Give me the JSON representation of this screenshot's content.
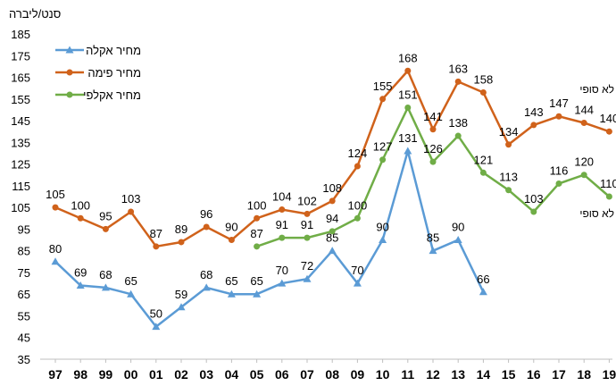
{
  "chart_data": {
    "type": "line",
    "ylabel": "סנט/ליברה",
    "ylim": [
      35,
      185
    ],
    "yticks": [
      35,
      45,
      55,
      65,
      75,
      85,
      95,
      105,
      115,
      125,
      135,
      145,
      155,
      165,
      175,
      185
    ],
    "categories": [
      "97",
      "98",
      "99",
      "00",
      "01",
      "02",
      "03",
      "04",
      "05",
      "06",
      "07",
      "08",
      "09",
      "10",
      "11",
      "12",
      "13",
      "14",
      "15",
      "16",
      "17",
      "18",
      "19"
    ],
    "legend_position": "top-left",
    "grid": false,
    "series": [
      {
        "name": "מחיר אקלה",
        "color": "#5b9bd5",
        "marker": "triangle",
        "values": [
          80,
          69,
          68,
          65,
          50,
          59,
          68,
          65,
          65,
          70,
          72,
          85,
          70,
          90,
          131,
          85,
          90,
          66,
          null,
          null,
          null,
          null,
          null
        ]
      },
      {
        "name": "מחיר פימה",
        "color": "#d0621b",
        "marker": "circle",
        "values": [
          105,
          100,
          95,
          103,
          87,
          89,
          96,
          90,
          100,
          104,
          102,
          108,
          124,
          155,
          168,
          141,
          163,
          158,
          134,
          143,
          147,
          144,
          140
        ]
      },
      {
        "name": "מחיר אקלפי",
        "color": "#70ad47",
        "marker": "circle",
        "values": [
          null,
          null,
          null,
          null,
          null,
          null,
          null,
          null,
          87,
          91,
          91,
          94,
          100,
          127,
          151,
          126,
          138,
          121,
          113,
          103,
          116,
          120,
          110
        ]
      }
    ],
    "annotations": [
      "לא סופי",
      "לא סופי"
    ]
  }
}
